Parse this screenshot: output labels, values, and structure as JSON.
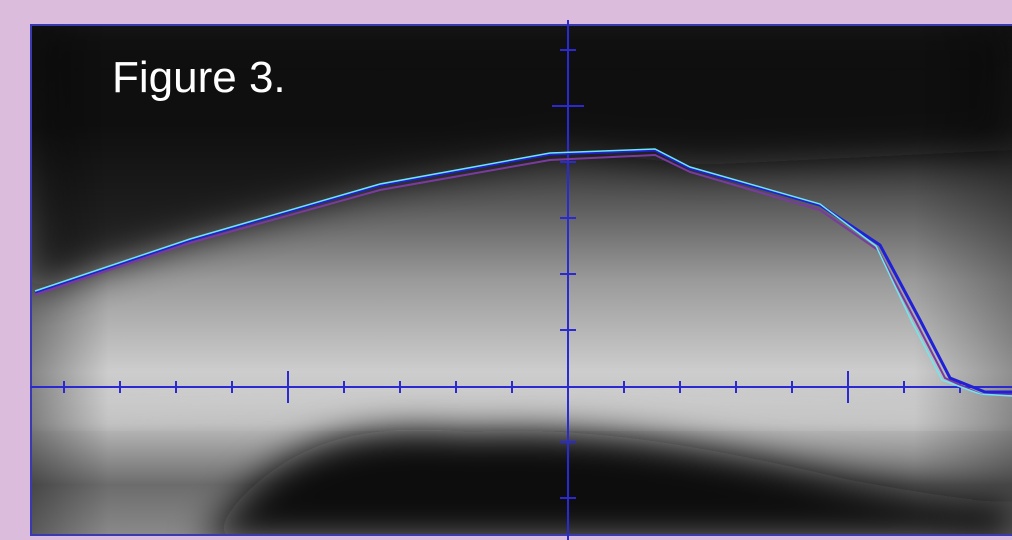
{
  "figure": {
    "label": "Figure 3."
  }
}
